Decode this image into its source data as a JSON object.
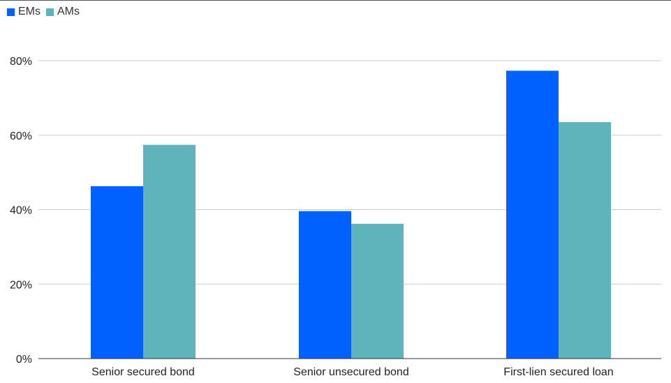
{
  "chart_data": {
    "type": "bar",
    "categories": [
      "Senior secured bond",
      "Senior unsecured bond",
      "First-lien secured loan"
    ],
    "series": [
      {
        "name": "EMs",
        "color": "#0061fe",
        "values": [
          46.3,
          39.6,
          77.3
        ]
      },
      {
        "name": "AMs",
        "color": "#5fb4bb",
        "values": [
          57.4,
          36.2,
          63.5
        ]
      }
    ],
    "yticks": [
      "0%",
      "20%",
      "40%",
      "60%",
      "80%"
    ],
    "ytick_values": [
      0,
      20,
      40,
      60,
      80
    ],
    "ylim": [
      0,
      80
    ],
    "grid": true,
    "legend_position": "top-left",
    "title": "",
    "xlabel": "",
    "ylabel": ""
  }
}
